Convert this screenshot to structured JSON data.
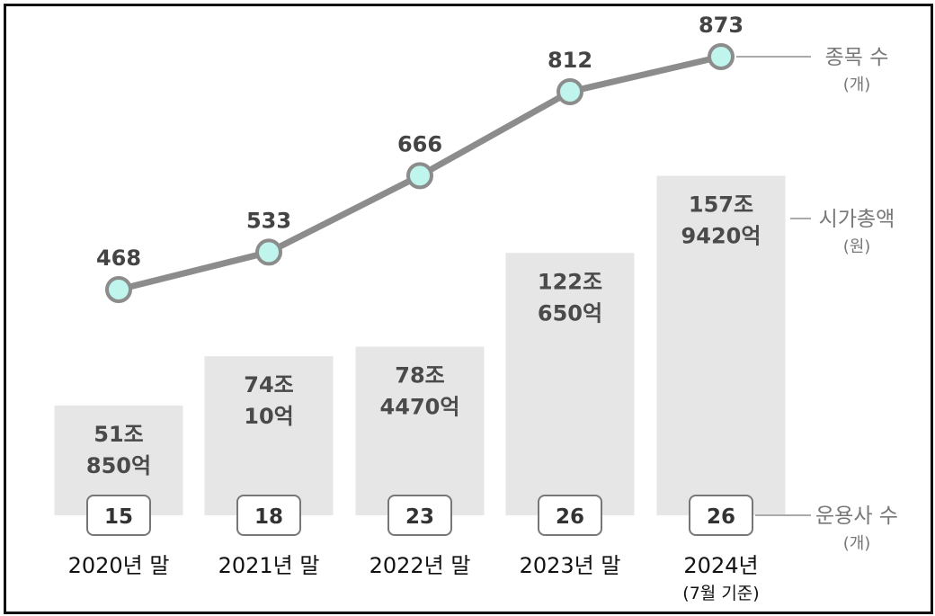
{
  "chart_data": {
    "type": "bar+line",
    "categories": [
      "2020년 말",
      "2021년 말",
      "2022년 말",
      "2023년 말",
      "2024년"
    ],
    "category_notes": [
      "",
      "",
      "",
      "",
      "(7월 기준)"
    ],
    "series": [
      {
        "name": "시가총액",
        "unit": "(원)",
        "type": "bar",
        "values": [
          51.085,
          74.001,
          78.447,
          122.065,
          157.942
        ],
        "labels": [
          [
            "51조",
            "850억"
          ],
          [
            "74조",
            "10억"
          ],
          [
            "78조",
            "4470억"
          ],
          [
            "122조",
            "650억"
          ],
          [
            "157조",
            "9420억"
          ]
        ]
      },
      {
        "name": "종목 수",
        "unit": "(개)",
        "type": "line",
        "values": [
          468,
          533,
          666,
          812,
          873
        ]
      },
      {
        "name": "운용사 수",
        "unit": "(개)",
        "type": "badge",
        "values": [
          15,
          18,
          23,
          26,
          26
        ]
      }
    ],
    "colors": {
      "bar": "#e6e6e6",
      "line": "#8c8c8c",
      "marker_fill": "#bff5ec",
      "marker_stroke": "#8c8c8c",
      "badge_border": "#777777",
      "legend_line": "#aaaaaa"
    }
  }
}
